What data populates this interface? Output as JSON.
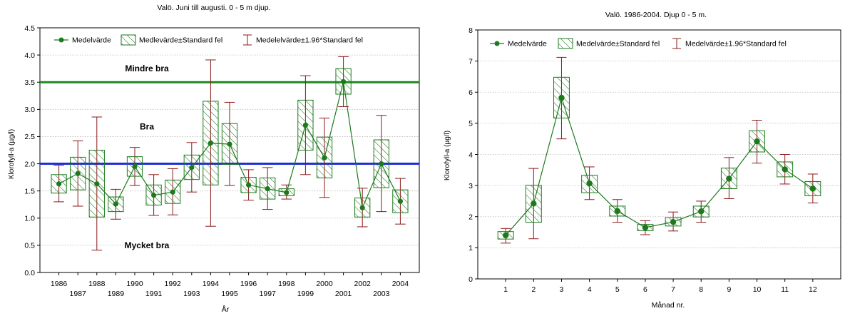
{
  "colors": {
    "series": "#1c7a1c",
    "box_hatch": "#1c7a1c",
    "whisker": "#8b1a1a",
    "green_threshold": "#1b8a1b",
    "blue_threshold": "#1f2fd6",
    "grid": "#b8b8b8"
  },
  "chart_data": [
    {
      "type": "line",
      "title": "Valö. Juni till augusti. 0 - 5 m djup.",
      "xlabel": "År",
      "ylabel": "Klorofyll-a (µg/l)",
      "ylim": [
        0.0,
        4.5
      ],
      "yticks": [
        "0.0",
        "0.5",
        "1.0",
        "1.5",
        "2.0",
        "2.5",
        "3.0",
        "3.5",
        "4.0",
        "4.5"
      ],
      "grid": "horizontal",
      "legend_position": "top",
      "legend": [
        "Medelvärde",
        "Medlevärde±Standard fel",
        "Medelelvärde±1.96*Standard fel"
      ],
      "x": [
        "1986",
        "1987",
        "1988",
        "1989",
        "1990",
        "1991",
        "1992",
        "1993",
        "1994",
        "1995",
        "1996",
        "1997",
        "1998",
        "1999",
        "2000",
        "2001",
        "2002",
        "2003",
        "2004"
      ],
      "series": [
        {
          "name": "Medelvärde",
          "values": [
            1.63,
            1.82,
            1.63,
            1.26,
            1.95,
            1.42,
            1.48,
            1.93,
            2.38,
            2.36,
            1.61,
            1.54,
            1.47,
            2.71,
            2.11,
            3.51,
            1.19,
            2.0,
            1.31
          ],
          "se_low": [
            1.46,
            1.52,
            1.02,
            1.12,
            1.77,
            1.24,
            1.27,
            1.71,
            1.61,
            1.99,
            1.47,
            1.35,
            1.41,
            2.25,
            1.74,
            3.28,
            1.02,
            1.56,
            1.1
          ],
          "se_high": [
            1.8,
            2.12,
            2.25,
            1.39,
            2.13,
            1.61,
            1.7,
            2.16,
            3.15,
            2.74,
            1.75,
            1.74,
            1.54,
            3.17,
            2.49,
            3.75,
            1.37,
            2.44,
            1.52
          ],
          "ci_low": [
            1.3,
            1.22,
            0.41,
            0.98,
            1.6,
            1.05,
            1.06,
            1.48,
            0.85,
            1.6,
            1.33,
            1.16,
            1.35,
            1.8,
            1.38,
            3.05,
            0.84,
            1.12,
            0.89
          ],
          "ci_high": [
            1.97,
            2.42,
            2.86,
            1.53,
            2.3,
            1.8,
            1.91,
            2.39,
            3.91,
            3.13,
            1.89,
            1.93,
            1.61,
            3.62,
            2.84,
            3.97,
            1.55,
            2.89,
            1.73
          ]
        }
      ],
      "thresholds": [
        {
          "value": 3.5,
          "color": "green"
        },
        {
          "value": 2.0,
          "color": "blue"
        }
      ],
      "annotations": [
        {
          "text": "Mindre bra",
          "y": 3.75
        },
        {
          "text": "Bra",
          "y": 2.68
        },
        {
          "text": "Mycket bra",
          "y": 0.5
        }
      ]
    },
    {
      "type": "line",
      "title": "Valö. 1986-2004. Djup 0 - 5 m.",
      "xlabel": "Månad nr.",
      "ylabel": "Klorofyll-a (µg/l)",
      "ylim": [
        0,
        8
      ],
      "yticks": [
        "0",
        "1",
        "2",
        "3",
        "4",
        "5",
        "6",
        "7",
        "8"
      ],
      "grid": "horizontal",
      "legend_position": "top",
      "legend": [
        "Medelvärde",
        "Medelvärde±Standard fel",
        "Medelvärde±1.96*Standard fel"
      ],
      "x": [
        "1",
        "2",
        "3",
        "4",
        "5",
        "6",
        "7",
        "8",
        "9",
        "10",
        "11",
        "12"
      ],
      "series": [
        {
          "name": "Medelvärde",
          "values": [
            1.4,
            2.42,
            5.82,
            3.07,
            2.18,
            1.65,
            1.83,
            2.17,
            3.22,
            4.42,
            3.52,
            2.9
          ],
          "se_low": [
            1.28,
            1.82,
            5.17,
            2.77,
            2.02,
            1.55,
            1.7,
            1.99,
            2.9,
            4.08,
            3.28,
            2.67
          ],
          "se_high": [
            1.52,
            3.01,
            6.48,
            3.33,
            2.34,
            1.75,
            1.97,
            2.34,
            3.56,
            4.76,
            3.76,
            3.13
          ],
          "ci_low": [
            1.15,
            1.29,
            4.5,
            2.55,
            1.82,
            1.42,
            1.54,
            1.82,
            2.58,
            3.72,
            3.05,
            2.44
          ],
          "ci_high": [
            1.62,
            3.55,
            7.12,
            3.6,
            2.55,
            1.87,
            2.15,
            2.5,
            3.9,
            5.1,
            4.0,
            3.37
          ]
        }
      ]
    }
  ]
}
